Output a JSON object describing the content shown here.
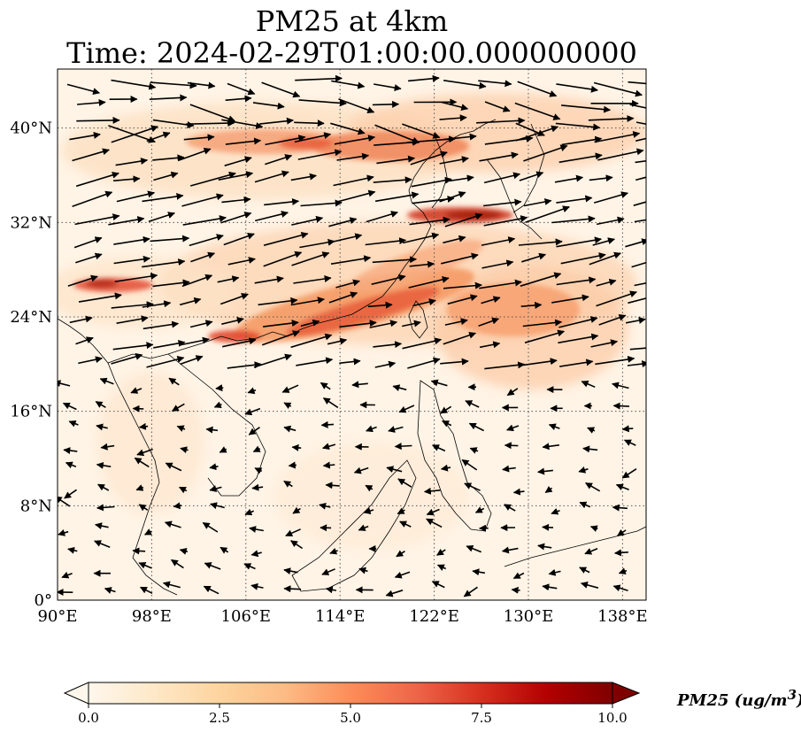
{
  "title": {
    "line1": "PM25 at 4km",
    "line2": "Time: 2024-02-29T01:00:00.000000000"
  },
  "map": {
    "type": "geographic-map",
    "projection": "plate-carree",
    "extent": {
      "lon": [
        90,
        140
      ],
      "lat": [
        0,
        45
      ]
    },
    "lon_ticks": [
      "90°E",
      "98°E",
      "106°E",
      "114°E",
      "122°E",
      "130°E",
      "138°E"
    ],
    "lat_ticks": [
      "0°",
      "8°N",
      "16°N",
      "24°N",
      "32°N",
      "40°N"
    ],
    "gridlines": "dotted",
    "field": "PM25 concentration (filled contours)",
    "overlay": "wind vectors (quiver arrows)",
    "pollution_hotspots": [
      {
        "name": "northern China band",
        "lon": [
          108,
          122
        ],
        "lat": [
          35,
          39
        ],
        "level": 5
      },
      {
        "name": "Yellow Sea band",
        "lon": [
          119,
          128
        ],
        "lat": [
          31,
          33
        ],
        "level": 8
      },
      {
        "name": "southern China band",
        "lon": [
          103,
          127
        ],
        "lat": [
          21,
          27
        ],
        "level": 6
      },
      {
        "name": "Myanmar plume",
        "lon": [
          90,
          97
        ],
        "lat": [
          25.5,
          27.5
        ],
        "level": 7
      },
      {
        "name": "Philippine Sea plume",
        "lon": [
          124,
          136
        ],
        "lat": [
          18,
          26
        ],
        "level": 3.5
      }
    ]
  },
  "colorbar": {
    "label": "PM25 (ug/m3)",
    "label_text": "PM25 (ug/m",
    "label_sup": "3",
    "label_close": ")",
    "colormap": "OrRd",
    "ticks": [
      "0.0",
      "2.5",
      "5.0",
      "7.5",
      "10.0"
    ],
    "range": [
      0,
      10
    ],
    "extend": "both",
    "colors": [
      "#fff7ec",
      "#fee8c8",
      "#fdd49e",
      "#fdbb84",
      "#fc8d59",
      "#ef6548",
      "#d7301f",
      "#b30000",
      "#7f0000"
    ]
  }
}
